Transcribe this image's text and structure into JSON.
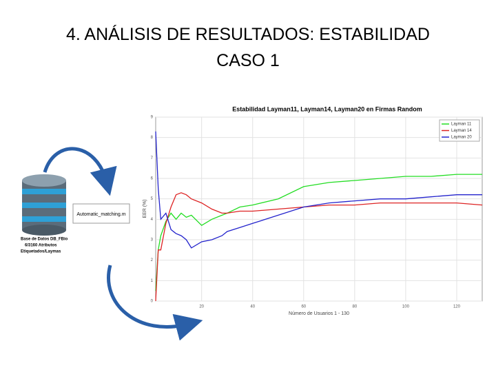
{
  "slide": {
    "title_lines": [
      "4. ANÁLISIS DE RESULTADOS: ESTABILIDAD",
      "CASO 1"
    ],
    "database_label": [
      "Base de Datos DB_FBio",
      "6/3160 Atributos",
      "Etiquetados/Laymas"
    ],
    "script_box": "Automatic_matching.m"
  },
  "chart_data": {
    "type": "line",
    "title": "Estabilidad Layman11, Layman14, Layman20 en Firmas Random",
    "x_label": "Número de Usuarios 1 - 130",
    "y_label": "EER (%)",
    "x": [
      2,
      3,
      4,
      6,
      8,
      10,
      12,
      14,
      16,
      20,
      24,
      28,
      30,
      35,
      40,
      50,
      60,
      70,
      80,
      90,
      100,
      110,
      120,
      130
    ],
    "series": [
      {
        "name": "Layman 11",
        "color": "#22dd22",
        "values": [
          0.5,
          2.5,
          3.2,
          3.9,
          4.3,
          4.0,
          4.3,
          4.1,
          4.2,
          3.7,
          4.0,
          4.2,
          4.3,
          4.6,
          4.7,
          5.0,
          5.6,
          5.8,
          5.9,
          6.0,
          6.1,
          6.1,
          6.2,
          6.2
        ]
      },
      {
        "name": "Layman 14",
        "color": "#dd2222",
        "values": [
          0.0,
          2.5,
          2.5,
          3.8,
          4.6,
          5.2,
          5.3,
          5.2,
          5.0,
          4.8,
          4.5,
          4.3,
          4.3,
          4.4,
          4.4,
          4.5,
          4.6,
          4.7,
          4.7,
          4.8,
          4.8,
          4.8,
          4.8,
          4.7
        ]
      },
      {
        "name": "Layman 20",
        "color": "#2222cc",
        "values": [
          8.3,
          5.5,
          4.0,
          4.3,
          3.5,
          3.3,
          3.2,
          3.0,
          2.6,
          2.9,
          3.0,
          3.2,
          3.4,
          3.6,
          3.8,
          4.2,
          4.6,
          4.8,
          4.9,
          5.0,
          5.0,
          5.1,
          5.2,
          5.2
        ]
      }
    ],
    "xlim": [
      2,
      130
    ],
    "ylim": [
      0,
      9
    ],
    "xticks": [
      20,
      40,
      60,
      80,
      100,
      120
    ],
    "yticks": [
      0,
      1,
      2,
      3,
      4,
      5,
      6,
      7,
      8,
      9
    ],
    "grid": true,
    "legend": "upper right"
  }
}
